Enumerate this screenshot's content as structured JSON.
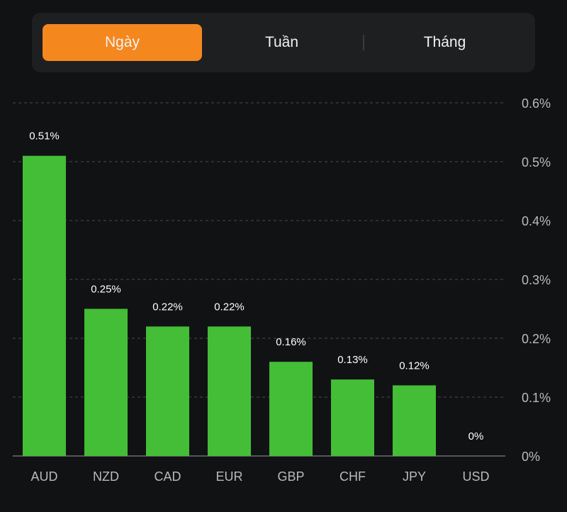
{
  "tabs": {
    "items": [
      {
        "label": "Ngày",
        "active": true
      },
      {
        "label": "Tuần",
        "active": false
      },
      {
        "label": "Tháng",
        "active": false
      }
    ],
    "active_color": "#f5871f"
  },
  "chart_data": {
    "type": "bar",
    "categories": [
      "AUD",
      "NZD",
      "CAD",
      "EUR",
      "GBP",
      "CHF",
      "JPY",
      "USD"
    ],
    "values": [
      0.51,
      0.25,
      0.22,
      0.22,
      0.16,
      0.13,
      0.12,
      0
    ],
    "data_labels": [
      "0.51%",
      "0.25%",
      "0.22%",
      "0.22%",
      "0.16%",
      "0.13%",
      "0.12%",
      "0%"
    ],
    "title": "",
    "xlabel": "",
    "ylabel": "",
    "ylim": [
      0,
      0.6
    ],
    "yticks": [
      0,
      0.1,
      0.2,
      0.3,
      0.4,
      0.5,
      0.6
    ],
    "ytick_labels": [
      "0%",
      "0.1%",
      "0.2%",
      "0.3%",
      "0.4%",
      "0.5%",
      "0.6%"
    ],
    "y_axis_side": "right",
    "grid": true,
    "bar_color": "#44bd37"
  }
}
